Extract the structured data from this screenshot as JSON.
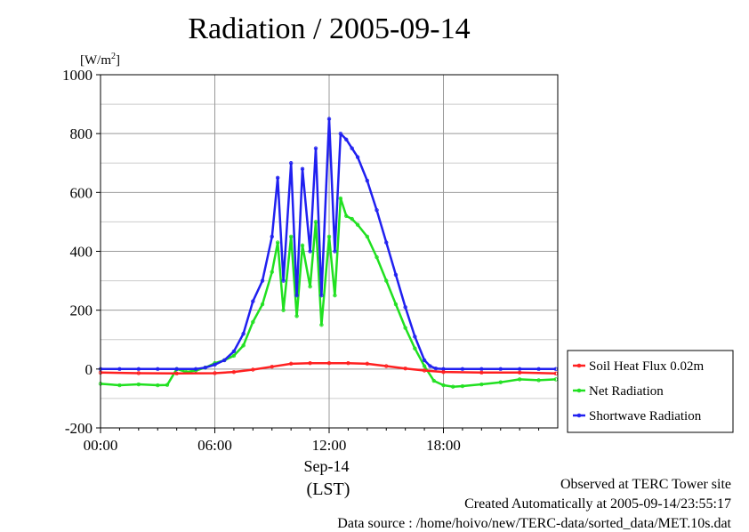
{
  "chart_data": {
    "type": "line",
    "title": "Radiation / 2005-09-14",
    "ylabel": "[W/m2]",
    "ylabel_base": "[W/m",
    "ylabel_sup": "2",
    "ylabel_close": "]",
    "xlabel_date": "Sep-14",
    "xlabel_unit": "(LST)",
    "xlim": [
      0,
      24
    ],
    "ylim": [
      -200,
      1000
    ],
    "yticks": [
      -200,
      0,
      200,
      400,
      600,
      800,
      1000
    ],
    "xticks": [
      {
        "hour": 0,
        "label": "00:00"
      },
      {
        "hour": 6,
        "label": "06:00"
      },
      {
        "hour": 12,
        "label": "12:00"
      },
      {
        "hour": 18,
        "label": "18:00"
      }
    ],
    "grid": true,
    "legend_position": "right",
    "series": [
      {
        "name": "Soil Heat Flux 0.02m",
        "color": "#ff2020",
        "x": [
          0,
          2,
          4,
          6,
          7,
          8,
          9,
          10,
          11,
          12,
          13,
          14,
          15,
          16,
          17,
          18,
          20,
          22,
          23.9
        ],
        "y": [
          -12,
          -14,
          -15,
          -14,
          -10,
          -2,
          8,
          18,
          20,
          20,
          20,
          18,
          10,
          2,
          -5,
          -10,
          -12,
          -12,
          -15
        ]
      },
      {
        "name": "Net Radiation",
        "color": "#20e020",
        "x": [
          0,
          1,
          2,
          3,
          3.5,
          4,
          4.5,
          5,
          5.5,
          6,
          6.5,
          7,
          7.5,
          8,
          8.5,
          9,
          9.3,
          9.6,
          10,
          10.3,
          10.6,
          11,
          11.3,
          11.6,
          12,
          12.3,
          12.6,
          12.9,
          13.2,
          13.5,
          14,
          14.5,
          15,
          15.5,
          16,
          16.5,
          17,
          17.5,
          18,
          18.5,
          19,
          20,
          21,
          22,
          23,
          23.9
        ],
        "y": [
          -50,
          -55,
          -52,
          -55,
          -54,
          0,
          -10,
          -5,
          5,
          20,
          30,
          45,
          80,
          160,
          220,
          330,
          430,
          200,
          450,
          180,
          420,
          280,
          500,
          150,
          450,
          250,
          580,
          520,
          510,
          490,
          450,
          380,
          300,
          220,
          140,
          70,
          10,
          -40,
          -55,
          -60,
          -58,
          -52,
          -45,
          -35,
          -38,
          -35
        ]
      },
      {
        "name": "Shortwave Radiation",
        "color": "#2020f0",
        "x": [
          0,
          1,
          2,
          3,
          4,
          5,
          5.5,
          6,
          6.5,
          7,
          7.5,
          8,
          8.5,
          9,
          9.3,
          9.6,
          10,
          10.3,
          10.6,
          11,
          11.3,
          11.6,
          12,
          12.3,
          12.6,
          12.9,
          13.2,
          13.5,
          14,
          14.5,
          15,
          15.5,
          16,
          16.5,
          17,
          17.3,
          17.6,
          18,
          19,
          20,
          21,
          22,
          23,
          23.9
        ],
        "y": [
          0,
          0,
          0,
          0,
          0,
          0,
          5,
          15,
          30,
          60,
          120,
          230,
          300,
          450,
          650,
          300,
          700,
          250,
          680,
          400,
          750,
          250,
          850,
          400,
          800,
          780,
          750,
          720,
          640,
          540,
          430,
          320,
          210,
          110,
          30,
          10,
          2,
          0,
          0,
          0,
          0,
          0,
          0,
          0
        ]
      }
    ]
  },
  "footer": {
    "observed": "Observed at TERC Tower site",
    "created": "Created Automatically at 2005-09-14/23:55:17",
    "source": "Data source : /home/hoivo/new/TERC-data/sorted_data/MET.10s.dat"
  }
}
